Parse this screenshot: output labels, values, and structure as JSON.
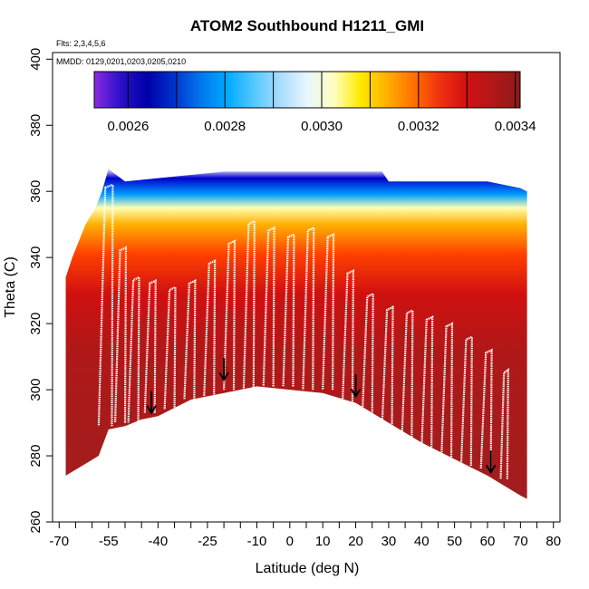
{
  "chart_data": {
    "type": "heatmap",
    "title": "ATOM2 Southbound H1211_GMI",
    "subtitle_flights": "Flts: 2,3,4,5,6",
    "subtitle_dates": "MMDD: 0129,0201,0203,0205,0210",
    "xlabel": "Latitude (deg N)",
    "ylabel": "Theta (C)",
    "xlim": [
      -72,
      82
    ],
    "ylim": [
      260,
      402
    ],
    "x_ticks": [
      -70,
      -65,
      -60,
      -55,
      -50,
      -45,
      -40,
      -35,
      -30,
      -25,
      -20,
      -15,
      -10,
      -5,
      0,
      5,
      10,
      15,
      20,
      25,
      30,
      35,
      40,
      45,
      50,
      55,
      60,
      65,
      70,
      75,
      80
    ],
    "x_tick_labels": [
      "-70",
      "-55",
      "-40",
      "-25",
      "-10",
      "0",
      "10",
      "20",
      "30",
      "40",
      "50",
      "60",
      "70",
      "80"
    ],
    "x_labeled_values": [
      -70,
      -55,
      -40,
      -25,
      -10,
      0,
      10,
      20,
      30,
      40,
      50,
      60,
      70,
      80
    ],
    "y_ticks": [
      260,
      280,
      300,
      320,
      340,
      360,
      380,
      400
    ],
    "y_tick_labels": [
      "260",
      "280",
      "300",
      "320",
      "340",
      "360",
      "380",
      "400"
    ],
    "colorbar": {
      "range": [
        0.00253,
        0.00341
      ],
      "tick_values": [
        0.0026,
        0.0028,
        0.003,
        0.0032,
        0.0034
      ],
      "tick_labels": [
        "0.0026",
        "0.0028",
        "0.0030",
        "0.0032",
        "0.0034"
      ],
      "colors": [
        "#8a2be2",
        "#2a10c8",
        "#0000a8",
        "#0033cc",
        "#0077ee",
        "#00aaff",
        "#55c8ff",
        "#aadcff",
        "#e8f6ff",
        "#ffffc0",
        "#ffea00",
        "#ffb000",
        "#ff7000",
        "#f03010",
        "#d01010",
        "#b01818",
        "#8b1a1a"
      ]
    },
    "ground_boundary": [
      [
        -68,
        274
      ],
      [
        -58,
        280
      ],
      [
        -55,
        288
      ],
      [
        -50,
        289
      ],
      [
        -45,
        291
      ],
      [
        -40,
        292
      ],
      [
        -30,
        297
      ],
      [
        -20,
        299
      ],
      [
        -10,
        301
      ],
      [
        0,
        300
      ],
      [
        10,
        299
      ],
      [
        20,
        296
      ],
      [
        30,
        290
      ],
      [
        40,
        284
      ],
      [
        50,
        279
      ],
      [
        60,
        274
      ],
      [
        70,
        268
      ],
      [
        72,
        267
      ]
    ],
    "top_boundary": [
      [
        -68,
        334
      ],
      [
        -66,
        340
      ],
      [
        -64,
        345
      ],
      [
        -62,
        350
      ],
      [
        -59,
        355
      ],
      [
        -57,
        360
      ],
      [
        -55,
        367
      ],
      [
        -54,
        366
      ],
      [
        -50,
        363
      ],
      [
        -40,
        364
      ],
      [
        -30,
        365
      ],
      [
        -20,
        366
      ],
      [
        -10,
        366
      ],
      [
        0,
        366
      ],
      [
        10,
        366
      ],
      [
        20,
        366
      ],
      [
        28,
        366
      ],
      [
        30,
        363
      ],
      [
        60,
        363
      ],
      [
        70,
        361
      ],
      [
        72,
        360
      ]
    ],
    "arrows": [
      [
        -42,
        293
      ],
      [
        -20,
        303
      ],
      [
        20,
        298
      ],
      [
        61,
        275
      ]
    ],
    "flight_profiles": [
      {
        "lat_start": -54,
        "lat_end": -58,
        "theta_top": 362,
        "theta_bottom": 289
      },
      {
        "lat_start": -50,
        "lat_end": -53,
        "theta_top": 343,
        "theta_bottom": 290
      },
      {
        "lat_start": -46,
        "lat_end": -49,
        "theta_top": 334,
        "theta_bottom": 290
      },
      {
        "lat_start": -41,
        "lat_end": -44,
        "theta_top": 333,
        "theta_bottom": 293
      },
      {
        "lat_start": -35,
        "lat_end": -38,
        "theta_top": 331,
        "theta_bottom": 294
      },
      {
        "lat_start": -29,
        "lat_end": -32,
        "theta_top": 333,
        "theta_bottom": 297
      },
      {
        "lat_start": -23,
        "lat_end": -26,
        "theta_top": 339,
        "theta_bottom": 298
      },
      {
        "lat_start": -17,
        "lat_end": -20,
        "theta_top": 345,
        "theta_bottom": 300
      },
      {
        "lat_start": -11,
        "lat_end": -14,
        "theta_top": 351,
        "theta_bottom": 300
      },
      {
        "lat_start": -5,
        "lat_end": -8,
        "theta_top": 349,
        "theta_bottom": 301
      },
      {
        "lat_start": 1,
        "lat_end": -2,
        "theta_top": 347,
        "theta_bottom": 301
      },
      {
        "lat_start": 7,
        "lat_end": 4,
        "theta_top": 349,
        "theta_bottom": 300
      },
      {
        "lat_start": 13,
        "lat_end": 10,
        "theta_top": 347,
        "theta_bottom": 300
      },
      {
        "lat_start": 19,
        "lat_end": 16,
        "theta_top": 336,
        "theta_bottom": 296
      },
      {
        "lat_start": 25,
        "lat_end": 22,
        "theta_top": 329,
        "theta_bottom": 292
      },
      {
        "lat_start": 31,
        "lat_end": 28,
        "theta_top": 325,
        "theta_bottom": 289
      },
      {
        "lat_start": 37,
        "lat_end": 34,
        "theta_top": 324,
        "theta_bottom": 285
      },
      {
        "lat_start": 43,
        "lat_end": 40,
        "theta_top": 322,
        "theta_bottom": 282
      },
      {
        "lat_start": 49,
        "lat_end": 46,
        "theta_top": 320,
        "theta_bottom": 279
      },
      {
        "lat_start": 55,
        "lat_end": 52,
        "theta_top": 316,
        "theta_bottom": 277
      },
      {
        "lat_start": 61,
        "lat_end": 58,
        "theta_top": 312,
        "theta_bottom": 276
      },
      {
        "lat_start": 66,
        "lat_end": 64,
        "theta_top": 306,
        "theta_bottom": 273
      }
    ]
  }
}
